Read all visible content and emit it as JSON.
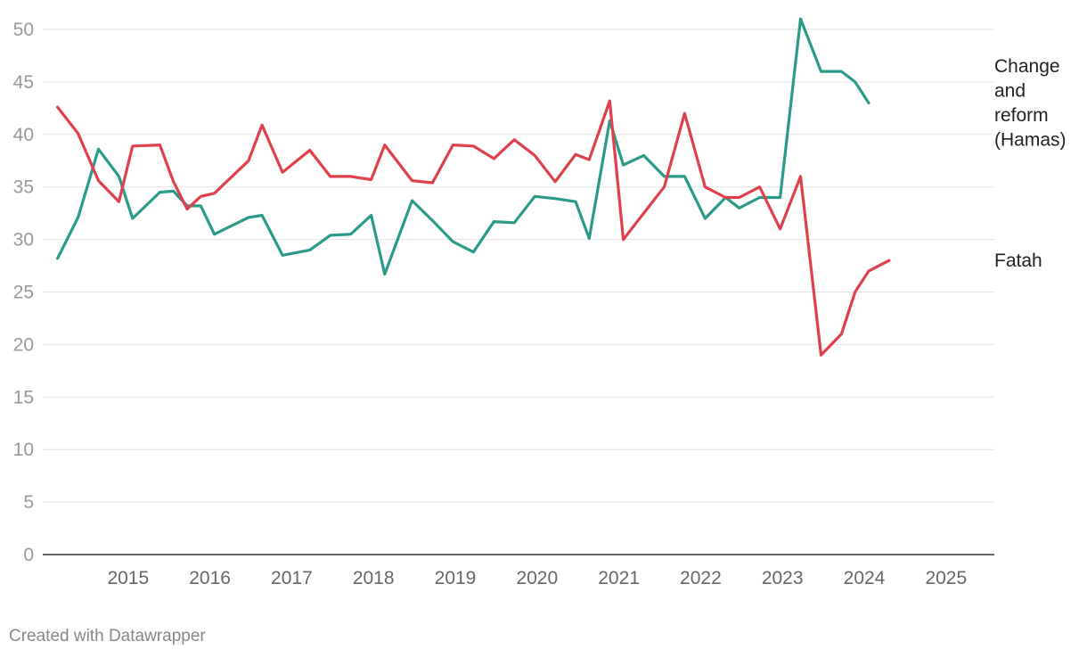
{
  "chart_data": {
    "type": "line",
    "ylim": [
      0,
      50
    ],
    "yticks": [
      "0",
      "5",
      "10",
      "15",
      "20",
      "25",
      "30",
      "35",
      "40",
      "45",
      "50"
    ],
    "xticks": [
      "2015",
      "2016",
      "2017",
      "2018",
      "2019",
      "2020",
      "2021",
      "2022",
      "2023",
      "2024",
      "2025"
    ],
    "grid": true,
    "x": [
      "2014-02",
      "2014-05",
      "2014-08",
      "2014-11",
      "2015-01",
      "2015-05",
      "2015-07",
      "2015-09",
      "2015-11",
      "2016-01",
      "2016-06",
      "2016-08",
      "2016-11",
      "2017-03",
      "2017-06",
      "2017-09",
      "2017-12",
      "2018-02",
      "2018-06",
      "2018-09",
      "2018-12",
      "2019-03",
      "2019-06",
      "2019-09",
      "2019-12",
      "2020-03",
      "2020-06",
      "2020-08",
      "2020-11",
      "2021-01",
      "2021-04",
      "2021-07",
      "2021-10",
      "2022-01",
      "2022-04",
      "2022-06",
      "2022-09",
      "2022-12",
      "2023-03",
      "2023-06",
      "2023-09",
      "2023-11",
      "2024-01",
      "2024-04",
      "2024-07",
      "2024-09",
      "2024-12",
      "2025-04"
    ],
    "series": [
      {
        "name": "Change and reform (Hamas)",
        "label_lines": [
          "Change",
          "and",
          "reform",
          "(Hamas)"
        ],
        "color": "#2a9a89",
        "values": [
          28.2,
          32.1,
          38.6,
          36.0,
          32.0,
          34.5,
          34.6,
          33.2,
          33.2,
          30.5,
          32.1,
          32.3,
          28.5,
          29.0,
          30.4,
          30.5,
          32.3,
          26.7,
          33.7,
          31.8,
          29.8,
          28.8,
          31.7,
          31.6,
          34.1,
          33.9,
          33.6,
          30.1,
          41.3,
          37.1,
          38.0,
          36.0,
          36.0,
          32.0,
          34.0,
          33.0,
          34.0,
          34.0,
          51.0,
          46.0,
          46.0,
          45.0,
          43.0,
          null,
          null,
          null,
          null,
          null
        ]
      },
      {
        "name": "Fatah",
        "label_lines": [
          "Fatah"
        ],
        "color": "#e0404c",
        "values": [
          42.6,
          40.1,
          35.6,
          33.6,
          38.9,
          39.0,
          35.5,
          32.9,
          34.1,
          34.4,
          37.5,
          40.9,
          36.4,
          38.5,
          36.0,
          36.0,
          35.7,
          39.0,
          35.6,
          35.4,
          39.0,
          38.9,
          37.7,
          39.5,
          38.0,
          35.5,
          38.1,
          37.6,
          43.2,
          30.0,
          32.5,
          35.0,
          42.0,
          35.0,
          34.0,
          34.0,
          35.0,
          31.0,
          36.0,
          19.0,
          21.0,
          25.0,
          27.0,
          28.0,
          null,
          null,
          null,
          null
        ]
      }
    ]
  },
  "credit": "Created with Datawrapper"
}
